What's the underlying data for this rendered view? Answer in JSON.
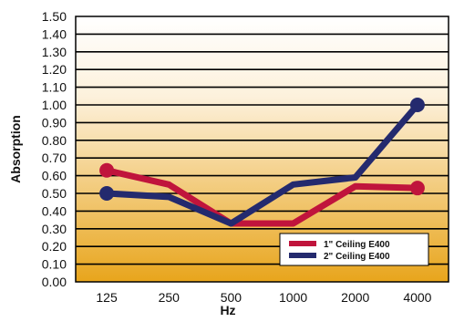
{
  "chart_data": {
    "type": "line",
    "title": "",
    "xlabel": "Hz",
    "ylabel": "Absorption",
    "categories": [
      "125",
      "250",
      "500",
      "1000",
      "2000",
      "4000"
    ],
    "ylim": [
      0,
      1.5
    ],
    "y_ticks": [
      "0.00",
      "0.10",
      "0.20",
      "0.30",
      "0.40",
      "0.50",
      "0.60",
      "0.70",
      "0.80",
      "0.90",
      "1.00",
      "1.10",
      "1.20",
      "1.30",
      "1.40",
      "1.50"
    ],
    "grid": true,
    "legend_position": "bottom-right",
    "background_gradient": [
      "#ffffff",
      "#e8a51c"
    ],
    "series": [
      {
        "name": "1\" Ceiling E400",
        "color": "#c0143c",
        "values": [
          0.63,
          0.55,
          0.33,
          0.33,
          0.54,
          0.53
        ],
        "markers": [
          0,
          5
        ]
      },
      {
        "name": "2\" Ceiling E400",
        "color": "#242a6e",
        "values": [
          0.5,
          0.48,
          0.33,
          0.55,
          0.59,
          1.0
        ],
        "markers": [
          0,
          5
        ]
      }
    ]
  }
}
